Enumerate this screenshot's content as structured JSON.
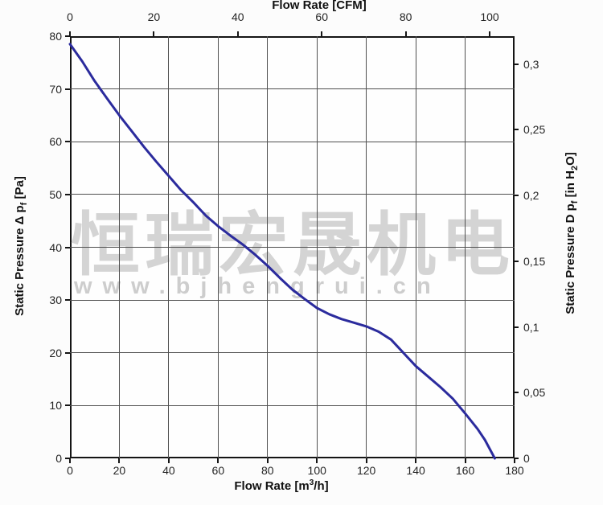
{
  "watermark": {
    "cn_text": "恒瑞宏晟机电",
    "url_text": "www.bjhengrui.cn"
  },
  "colors": {
    "curve": "#2b2b9d",
    "grid": "#505050",
    "axis": "#151515",
    "tick_text": "#252525",
    "watermark_cn": "#d4d4d4",
    "watermark_url": "#cdcdcd",
    "background": "#fcfcfc"
  },
  "chart_data": {
    "type": "line",
    "title_top_axis": "Flow Rate [CFM]",
    "xlabel_bottom": "Flow Rate [m³/h]",
    "ylabel_left": "Static Pressure Δ pf [Pa]",
    "ylabel_right": "Static Pressure D pf [in H2O]",
    "x_bottom_ticks": [
      0,
      20,
      40,
      60,
      80,
      100,
      120,
      140,
      160,
      180
    ],
    "x_top_ticks": [
      0,
      20,
      40,
      60,
      80,
      100
    ],
    "y_left_ticks": [
      0,
      10,
      20,
      30,
      40,
      50,
      60,
      70,
      80
    ],
    "y_right_ticks": [
      "0",
      "0,05",
      "0,1",
      "0,15",
      "0,2",
      "0,25",
      "0,3"
    ],
    "y_right_tick_values": [
      0,
      0.05,
      0.1,
      0.15,
      0.2,
      0.25,
      0.3
    ],
    "x_range_m3h": [
      0,
      180
    ],
    "y_left_range_pa": [
      0,
      80
    ],
    "y_right_range_inH2O": [
      0,
      0.3212
    ],
    "cfm_to_m3h": 1.6992,
    "grid": {
      "x_every_m3h": 20,
      "y_every_pa": 10,
      "grid_on": true
    },
    "legend": "none",
    "series": [
      {
        "name": "static-pressure-curve",
        "x_unit": "m3/h",
        "y_unit": "Pa",
        "points": [
          [
            0,
            78.5
          ],
          [
            5,
            75.2
          ],
          [
            10,
            71.5
          ],
          [
            15,
            68.2
          ],
          [
            20,
            65.0
          ],
          [
            25,
            62.0
          ],
          [
            30,
            59.0
          ],
          [
            35,
            56.2
          ],
          [
            40,
            53.5
          ],
          [
            45,
            50.8
          ],
          [
            50,
            48.5
          ],
          [
            55,
            46.0
          ],
          [
            60,
            44.0
          ],
          [
            65,
            42.2
          ],
          [
            70,
            40.5
          ],
          [
            75,
            38.6
          ],
          [
            80,
            36.5
          ],
          [
            85,
            34.2
          ],
          [
            90,
            32.0
          ],
          [
            95,
            30.2
          ],
          [
            100,
            28.5
          ],
          [
            105,
            27.3
          ],
          [
            110,
            26.4
          ],
          [
            115,
            25.7
          ],
          [
            120,
            25.0
          ],
          [
            125,
            24.0
          ],
          [
            130,
            22.5
          ],
          [
            135,
            20.0
          ],
          [
            140,
            17.5
          ],
          [
            145,
            15.5
          ],
          [
            150,
            13.5
          ],
          [
            155,
            11.3
          ],
          [
            160,
            8.5
          ],
          [
            165,
            5.6
          ],
          [
            168,
            3.5
          ],
          [
            172,
            0
          ]
        ]
      }
    ]
  },
  "axis_label_parts": {
    "top_title": "Flow Rate [CFM]",
    "left_prefix": "Static Pressure Δ p",
    "left_sub": "f",
    "left_suffix": " [Pa]",
    "right_prefix": "Static Pressure D p",
    "right_sub": "f",
    "right_mid": " [in H",
    "right_sub2": "2",
    "right_suffix": "O]",
    "bottom_prefix": "Flow Rate [m",
    "bottom_sup": "3",
    "bottom_suffix": "/h]"
  }
}
